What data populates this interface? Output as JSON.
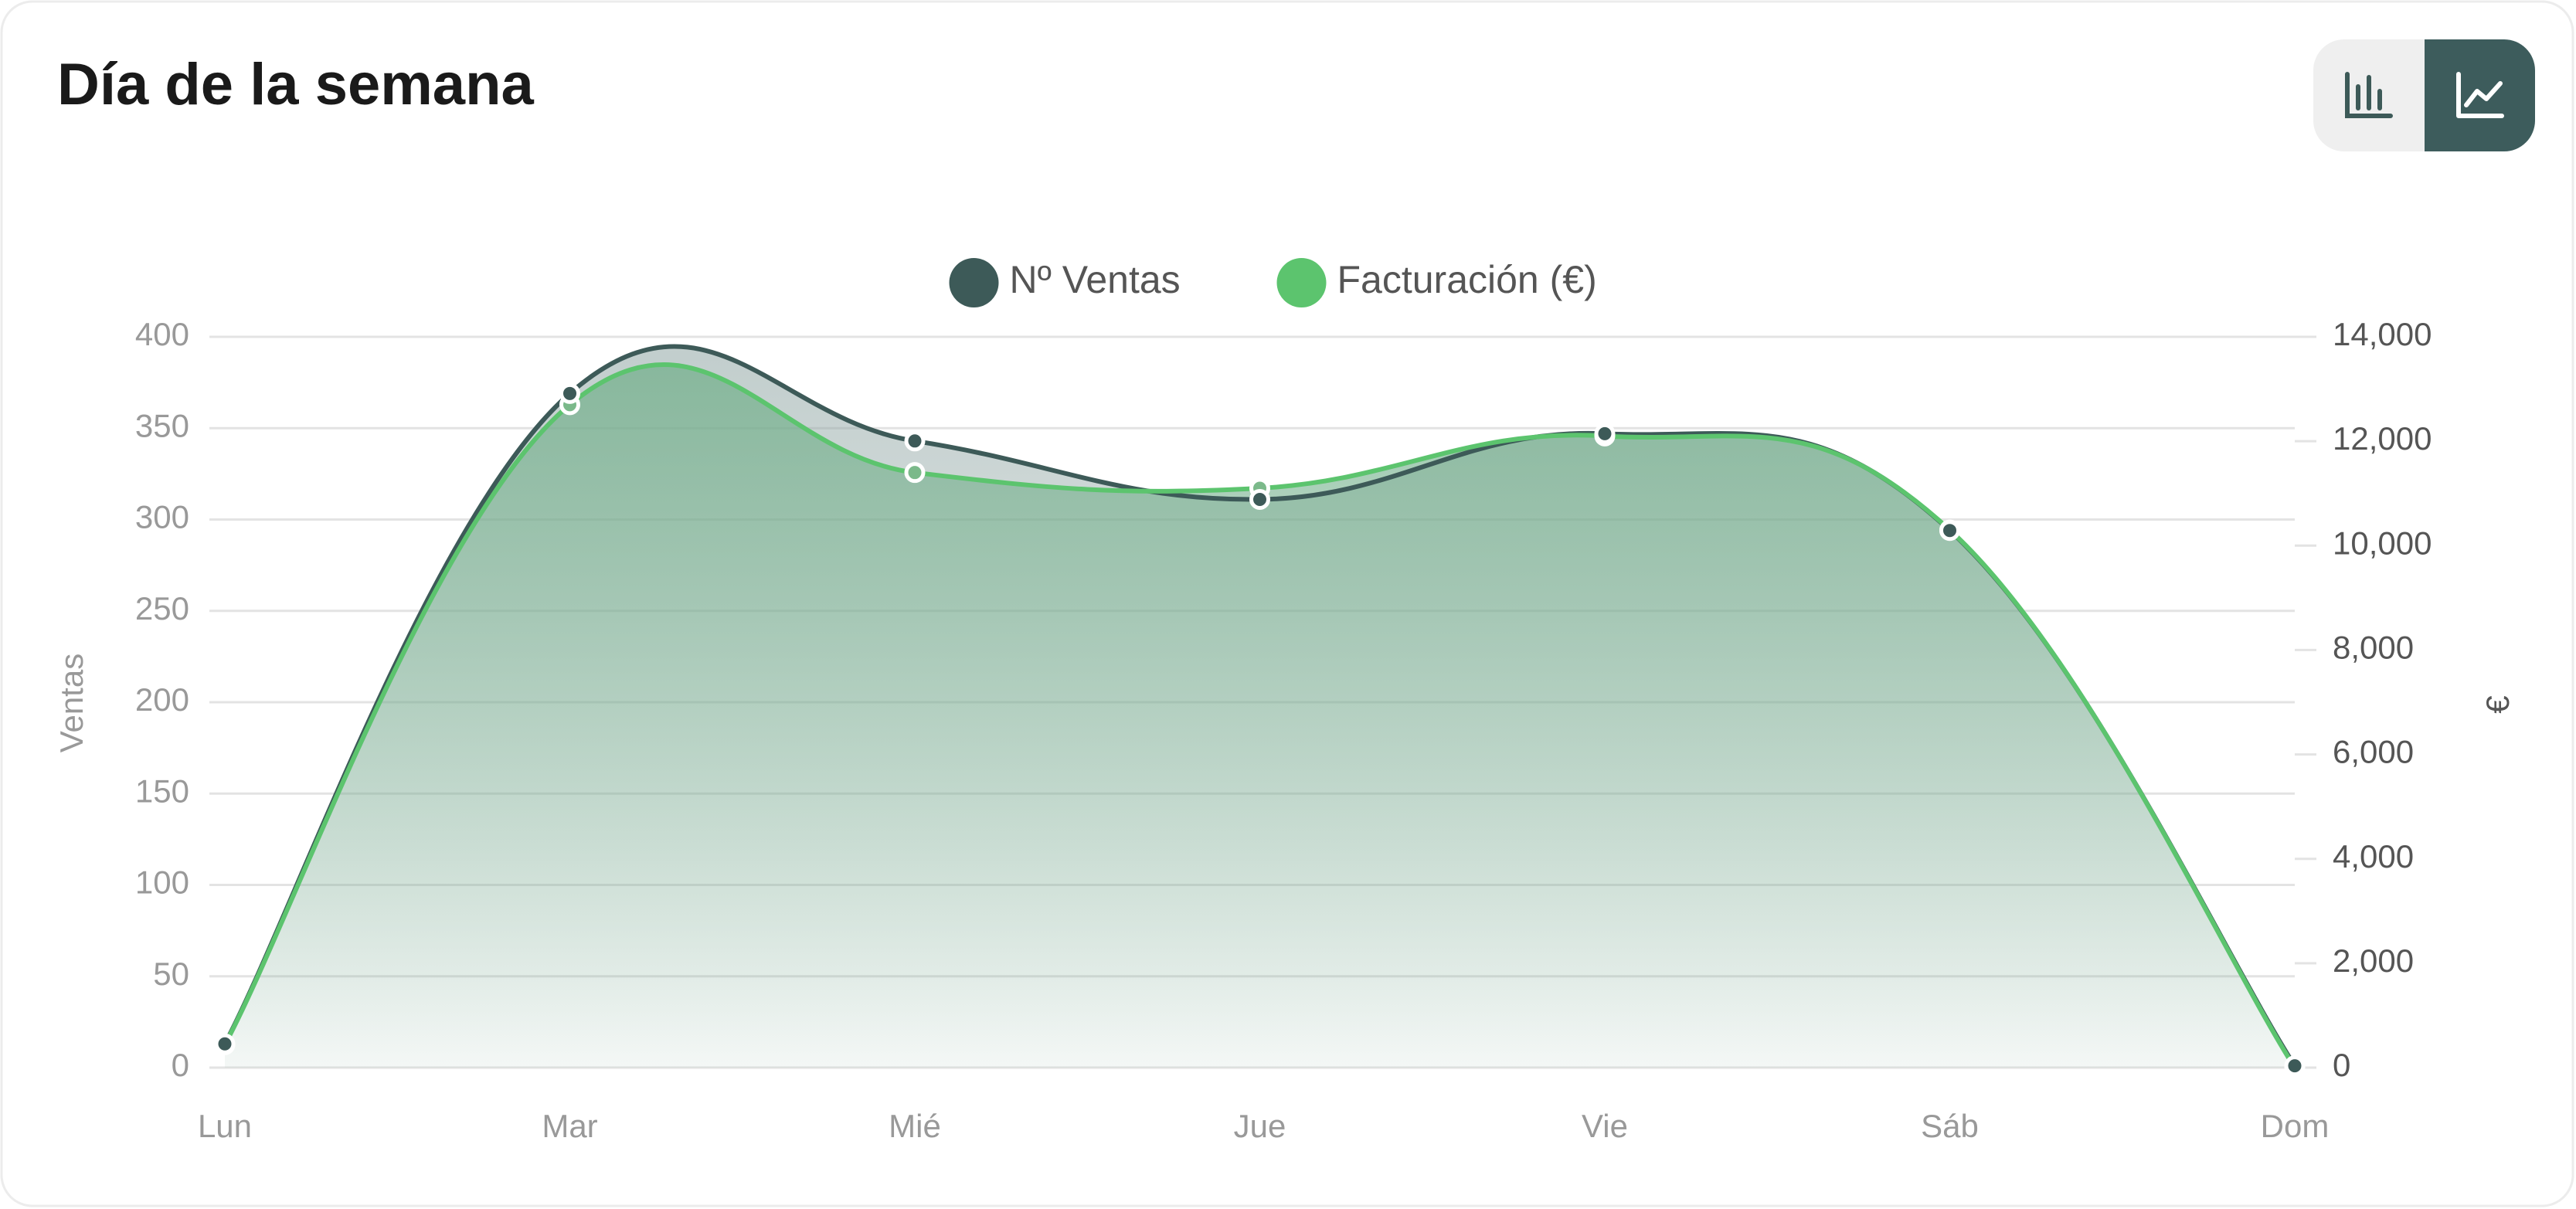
{
  "chart_data": {
    "type": "line",
    "title": "Día de la semana",
    "categories": [
      "Lun",
      "Mar",
      "Mié",
      "Jue",
      "Vie",
      "Sáb",
      "Dom"
    ],
    "series": [
      {
        "name": "Nº Ventas",
        "color": "#3d5a58",
        "axis": "y",
        "values": [
          13,
          369,
          343,
          311,
          347,
          294,
          1
        ]
      },
      {
        "name": "Facturación (€)",
        "color": "#5cc46e",
        "axis": "y2",
        "values": [
          440,
          12700,
          11400,
          11100,
          12100,
          10300,
          0
        ]
      }
    ],
    "ylabel": "Ventas",
    "y2label": "€",
    "ylim": [
      0,
      400
    ],
    "yticks": [
      0,
      50,
      100,
      150,
      200,
      250,
      300,
      350,
      400
    ],
    "y2lim": [
      0,
      14000
    ],
    "y2ticks": [
      0,
      {
        "value": 2000,
        "label": "2,000"
      },
      {
        "value": 4000,
        "label": "4,000"
      },
      {
        "value": 6000,
        "label": "6,000"
      },
      {
        "value": 8000,
        "label": "8,000"
      },
      {
        "value": 10000,
        "label": "10,000"
      },
      {
        "value": 12000,
        "label": "12,000"
      },
      {
        "value": 14000,
        "label": "14,000"
      }
    ],
    "grid": true,
    "legend": "top"
  }
}
